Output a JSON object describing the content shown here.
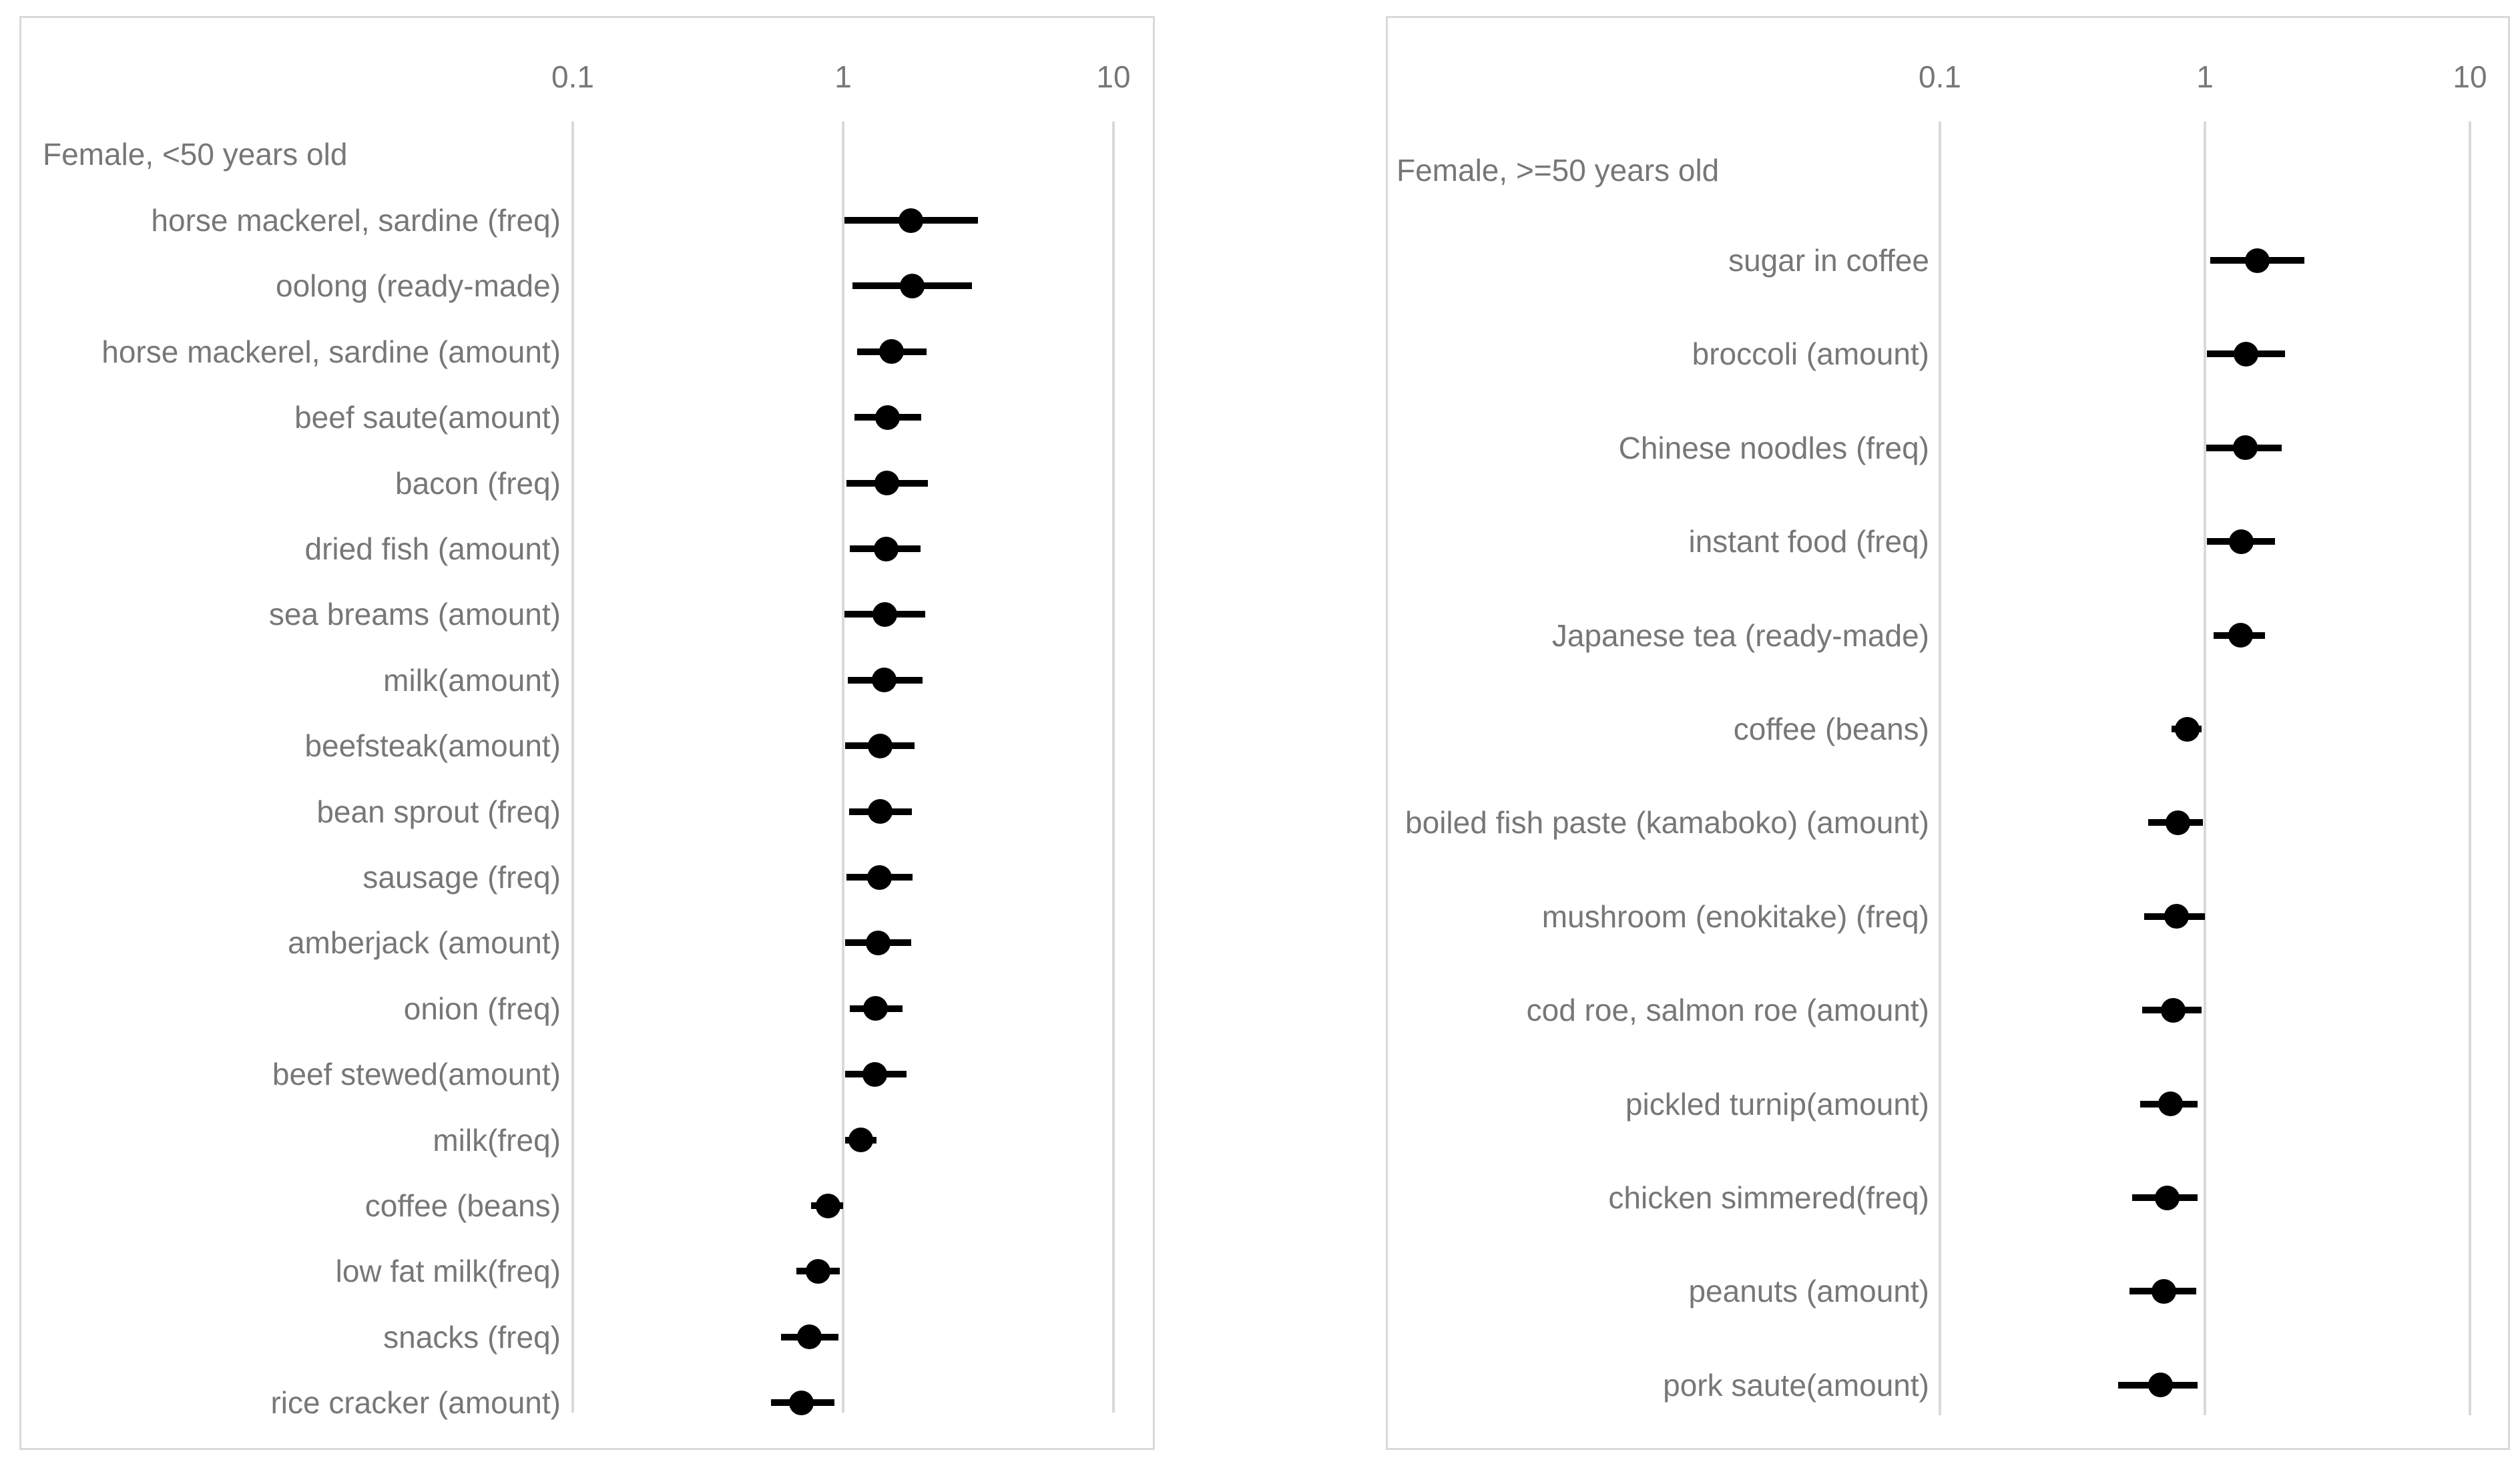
{
  "page": {
    "background": "#ffffff"
  },
  "colors": {
    "text": "#777777",
    "gridline": "#d9d9d9",
    "panel_border": "#d9d9d9",
    "marker": "#000000"
  },
  "chart_data": [
    {
      "type": "scatter",
      "title": "Female, <50 years old",
      "xscale": "log",
      "xlim": [
        0.1,
        10
      ],
      "x_ticks": [
        0.1,
        1,
        10
      ],
      "x_tick_labels": [
        "0.1",
        "1",
        "10"
      ],
      "grid": true,
      "legend": "none",
      "marker_style": "filled-black-circle-with-horizontal-error-bar",
      "rows": [
        {
          "label": "horse mackerel, sardine (freq)",
          "value": 1.78,
          "ci_low": 1.01,
          "ci_high": 3.16
        },
        {
          "label": "oolong (ready-made)",
          "value": 1.8,
          "ci_low": 1.08,
          "ci_high": 3.0
        },
        {
          "label": "horse mackerel, sardine (amount)",
          "value": 1.51,
          "ci_low": 1.13,
          "ci_high": 2.04
        },
        {
          "label": "beef saute(amount)",
          "value": 1.46,
          "ci_low": 1.1,
          "ci_high": 1.94
        },
        {
          "label": "bacon (freq)",
          "value": 1.45,
          "ci_low": 1.03,
          "ci_high": 2.06
        },
        {
          "label": "dried fish (amount)",
          "value": 1.44,
          "ci_low": 1.06,
          "ci_high": 1.93
        },
        {
          "label": "sea breams (amount)",
          "value": 1.43,
          "ci_low": 1.01,
          "ci_high": 2.01
        },
        {
          "label": "milk(amount)",
          "value": 1.42,
          "ci_low": 1.04,
          "ci_high": 1.97
        },
        {
          "label": "beefsteak(amount)",
          "value": 1.37,
          "ci_low": 1.02,
          "ci_high": 1.84
        },
        {
          "label": "bean sprout (freq)",
          "value": 1.37,
          "ci_low": 1.05,
          "ci_high": 1.8
        },
        {
          "label": "sausage (freq)",
          "value": 1.36,
          "ci_low": 1.03,
          "ci_high": 1.81
        },
        {
          "label": "amberjack (amount)",
          "value": 1.35,
          "ci_low": 1.02,
          "ci_high": 1.79
        },
        {
          "label": "onion (freq)",
          "value": 1.32,
          "ci_low": 1.06,
          "ci_high": 1.66
        },
        {
          "label": "beef stewed(amount)",
          "value": 1.31,
          "ci_low": 1.02,
          "ci_high": 1.72
        },
        {
          "label": "milk(freq)",
          "value": 1.16,
          "ci_low": 1.02,
          "ci_high": 1.33
        },
        {
          "label": "coffee (beans)",
          "value": 0.88,
          "ci_low": 0.76,
          "ci_high": 1.0
        },
        {
          "label": "low fat milk(freq)",
          "value": 0.81,
          "ci_low": 0.67,
          "ci_high": 0.97
        },
        {
          "label": "snacks (freq)",
          "value": 0.75,
          "ci_low": 0.59,
          "ci_high": 0.96
        },
        {
          "label": "rice cracker (amount)",
          "value": 0.7,
          "ci_low": 0.54,
          "ci_high": 0.93
        }
      ]
    },
    {
      "type": "scatter",
      "title": "Female, >=50 years old",
      "xscale": "log",
      "xlim": [
        0.1,
        10
      ],
      "x_ticks": [
        0.1,
        1,
        10
      ],
      "x_tick_labels": [
        "0.1",
        "1",
        "10"
      ],
      "grid": true,
      "legend": "none",
      "marker_style": "filled-black-circle-with-horizontal-error-bar",
      "rows": [
        {
          "label": "sugar in coffee",
          "value": 1.58,
          "ci_low": 1.05,
          "ci_high": 2.38
        },
        {
          "label": "broccoli (amount)",
          "value": 1.43,
          "ci_low": 1.02,
          "ci_high": 2.0
        },
        {
          "label": "Chinese noodles (freq)",
          "value": 1.42,
          "ci_low": 1.01,
          "ci_high": 1.95
        },
        {
          "label": "instant food (freq)",
          "value": 1.37,
          "ci_low": 1.02,
          "ci_high": 1.84
        },
        {
          "label": "Japanese tea (ready-made)",
          "value": 1.36,
          "ci_low": 1.08,
          "ci_high": 1.69
        },
        {
          "label": "coffee (beans)",
          "value": 0.86,
          "ci_low": 0.75,
          "ci_high": 0.97
        },
        {
          "label": "boiled fish paste (kamaboko) (amount)",
          "value": 0.79,
          "ci_low": 0.61,
          "ci_high": 0.98
        },
        {
          "label": "mushroom (enokitake) (freq)",
          "value": 0.78,
          "ci_low": 0.59,
          "ci_high": 1.0
        },
        {
          "label": "cod roe, salmon roe (amount)",
          "value": 0.76,
          "ci_low": 0.58,
          "ci_high": 0.97
        },
        {
          "label": "pickled turnip(amount)",
          "value": 0.74,
          "ci_low": 0.57,
          "ci_high": 0.94
        },
        {
          "label": "chicken simmered(freq)",
          "value": 0.72,
          "ci_low": 0.53,
          "ci_high": 0.94
        },
        {
          "label": "peanuts (amount)",
          "value": 0.7,
          "ci_low": 0.52,
          "ci_high": 0.93
        },
        {
          "label": "pork saute(amount)",
          "value": 0.68,
          "ci_low": 0.47,
          "ci_high": 0.94
        }
      ]
    }
  ]
}
